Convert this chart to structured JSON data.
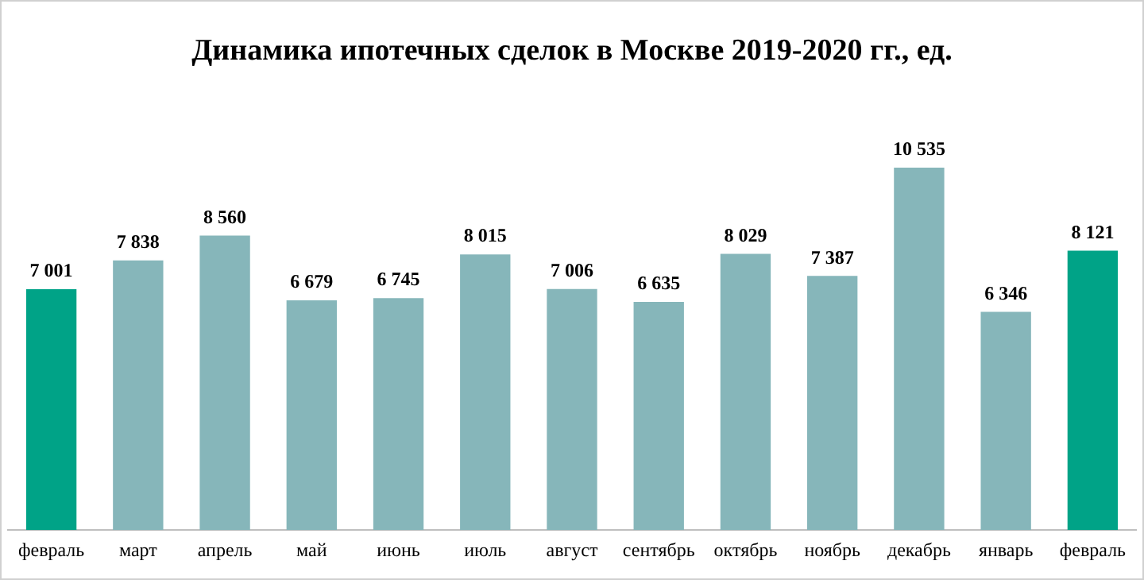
{
  "chart_data": {
    "type": "bar",
    "title": "Динамика ипотечных сделок в Москве 2019-2020 гг., ед.",
    "categories": [
      "февраль",
      "март",
      "апрель",
      "май",
      "июнь",
      "июль",
      "август",
      "сентябрь",
      "октябрь",
      "ноябрь",
      "декабрь",
      "январь",
      "февраль"
    ],
    "values": [
      7001,
      7838,
      8560,
      6679,
      6745,
      8015,
      7006,
      6635,
      8029,
      7387,
      10535,
      6346,
      8121
    ],
    "colors": [
      "#00a387",
      "#86b6ba",
      "#86b6ba",
      "#86b6ba",
      "#86b6ba",
      "#86b6ba",
      "#86b6ba",
      "#86b6ba",
      "#86b6ba",
      "#86b6ba",
      "#86b6ba",
      "#86b6ba",
      "#00a387"
    ],
    "value_labels": [
      "7 001",
      "7 838",
      "8 560",
      "6 679",
      "6 745",
      "8 015",
      "7 006",
      "6 635",
      "8 029",
      "7 387",
      "10 535",
      "6 346",
      "8 121"
    ],
    "grid": false,
    "legend": false
  }
}
